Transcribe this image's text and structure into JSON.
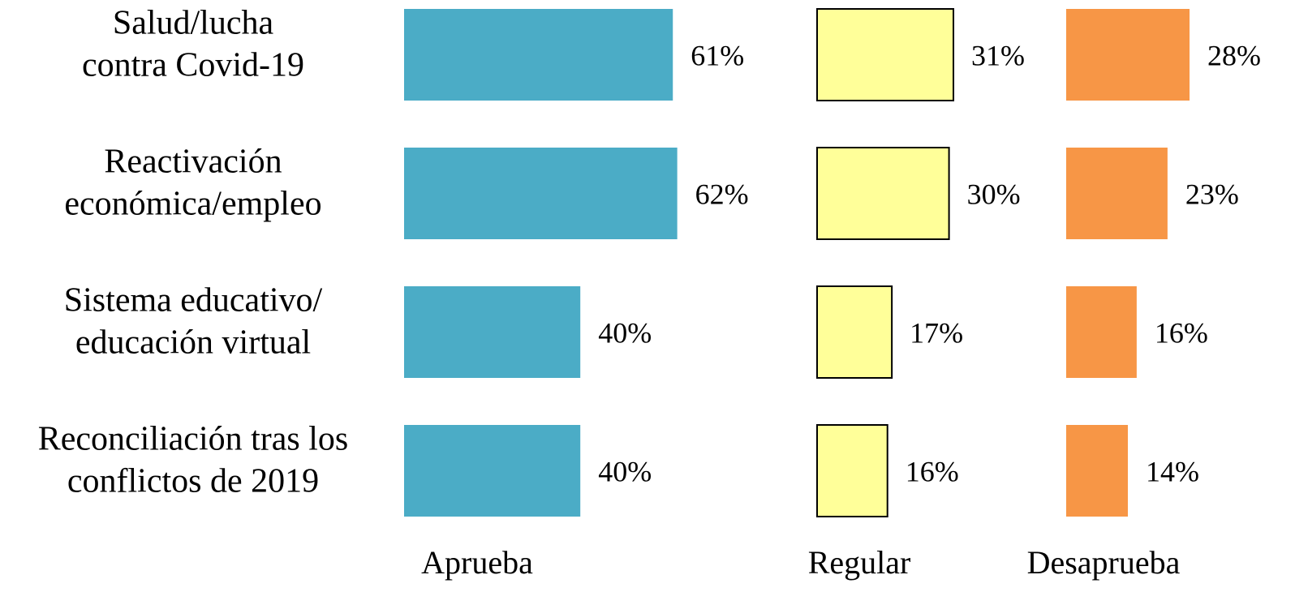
{
  "chart_data": {
    "type": "bar",
    "orientation": "horizontal",
    "layout": "small-multiples",
    "categories": [
      [
        "Salud/lucha",
        "contra Covid-19"
      ],
      [
        "Reactivación",
        "económica/empleo"
      ],
      [
        "Sistema educativo/",
        "educación virtual"
      ],
      [
        "Reconciliación tras los",
        "conflictos de 2019"
      ]
    ],
    "value_unit": "%",
    "series": [
      {
        "name": "Aprueba",
        "color": "#4bacc6",
        "border": "none",
        "values": [
          61,
          62,
          40,
          40
        ]
      },
      {
        "name": "Regular",
        "color": "#ffff99",
        "border": "#000000",
        "values": [
          31,
          30,
          17,
          16
        ]
      },
      {
        "name": "Desaprueba",
        "color": "#f79646",
        "border": "none",
        "values": [
          28,
          23,
          16,
          14
        ]
      }
    ],
    "grid": false,
    "legend": "bottom (series names under each panel)"
  }
}
